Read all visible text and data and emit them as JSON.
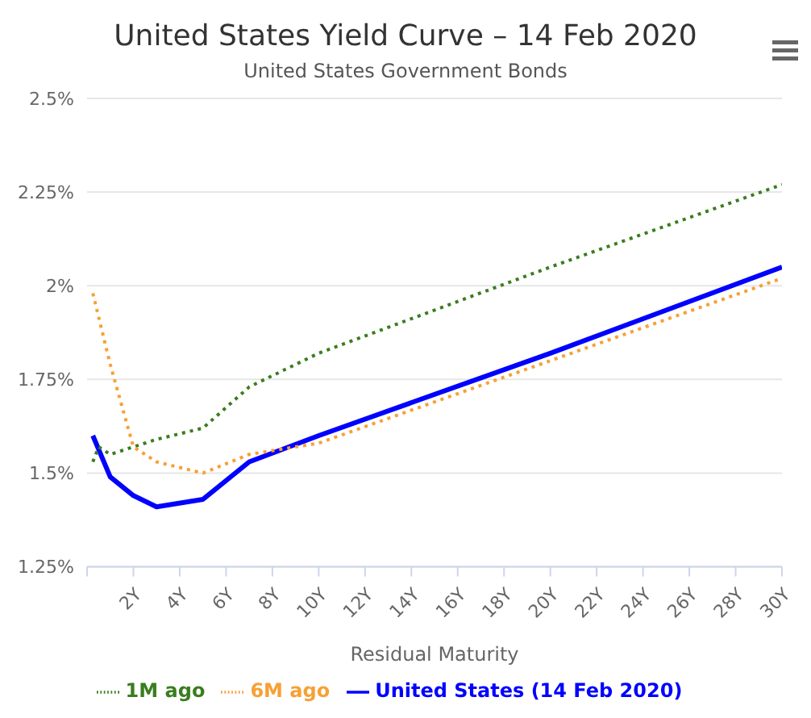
{
  "chart_data": {
    "type": "line",
    "title": "United States Yield Curve – 14 Feb 2020",
    "subtitle": "United States Government Bonds",
    "xlabel": "Residual Maturity",
    "x": [
      0.25,
      1,
      2,
      3,
      5,
      7,
      10,
      20,
      30
    ],
    "series": [
      {
        "name": "United States (14 Feb 2020)",
        "color": "#0000ff",
        "line_style": "solid",
        "values": [
          1.6,
          1.49,
          1.44,
          1.41,
          1.43,
          1.53,
          1.6,
          1.82,
          2.05
        ]
      },
      {
        "name": "1M ago",
        "color": "#3a7d1e",
        "line_style": "dotted",
        "x": [
          0.25,
          0.5,
          1,
          2,
          3,
          5,
          7,
          10,
          20,
          30
        ],
        "values": [
          1.53,
          1.57,
          1.55,
          1.57,
          1.59,
          1.62,
          1.73,
          1.82,
          2.05,
          2.27
        ]
      },
      {
        "name": "6M ago",
        "color": "#f7a035",
        "line_style": "dotted",
        "values": [
          1.98,
          1.79,
          1.57,
          1.53,
          1.5,
          1.55,
          1.58,
          1.8,
          2.02
        ]
      }
    ],
    "xlim": [
      0,
      30
    ],
    "xticks": [
      {
        "value": 0,
        "label": null
      },
      {
        "value": 2,
        "label": "2Y"
      },
      {
        "value": 4,
        "label": "4Y"
      },
      {
        "value": 6,
        "label": "6Y"
      },
      {
        "value": 8,
        "label": "8Y"
      },
      {
        "value": 10,
        "label": "10Y"
      },
      {
        "value": 12,
        "label": "12Y"
      },
      {
        "value": 14,
        "label": "14Y"
      },
      {
        "value": 16,
        "label": "16Y"
      },
      {
        "value": 18,
        "label": "18Y"
      },
      {
        "value": 20,
        "label": "20Y"
      },
      {
        "value": 22,
        "label": "22Y"
      },
      {
        "value": 24,
        "label": "24Y"
      },
      {
        "value": 26,
        "label": "26Y"
      },
      {
        "value": 28,
        "label": "28Y"
      },
      {
        "value": 30,
        "label": "30Y"
      }
    ],
    "ylim": [
      1.25,
      2.5
    ],
    "yticks": [
      {
        "value": 1.25,
        "label": "1.25%"
      },
      {
        "value": 1.5,
        "label": "1.5%"
      },
      {
        "value": 1.75,
        "label": "1.75%"
      },
      {
        "value": 2,
        "label": "2%"
      },
      {
        "value": 2.25,
        "label": "2.25%"
      },
      {
        "value": 2.5,
        "label": "2.5%"
      }
    ],
    "grid": "y",
    "legend": "bottom",
    "marker": "none"
  }
}
